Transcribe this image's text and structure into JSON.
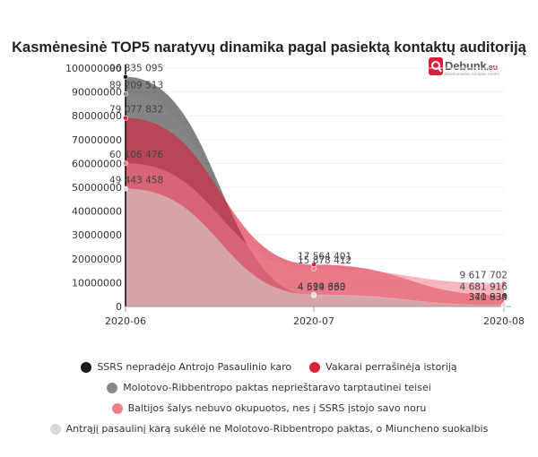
{
  "title": "Kasmėnesinė TOP5 naratyvų dinamika pagal pasiektą kontaktų auditoriją",
  "logo": {
    "word": "Debunk",
    "tld": ".eu",
    "tagline": "Disinformation Analysis Center"
  },
  "chart_data": {
    "type": "area",
    "categories": [
      "2020-06",
      "2020-07",
      "2020-08"
    ],
    "y_ticks": [
      "0",
      "10000000",
      "20000000",
      "30000000",
      "40000000",
      "50000000",
      "60000000",
      "70000000",
      "80000000",
      "90000000",
      "100000000"
    ],
    "ylim": [
      0,
      100000000
    ],
    "legend_position": "bottom",
    "series": [
      {
        "name": "SSRS nepradėjo Antrojo Pasaulinio karo",
        "color": "#1a1a1a",
        "values": [
          96335095,
          4514333,
          370830
        ],
        "labels": [
          "96 335 095",
          "4 514 333",
          "370 830"
        ]
      },
      {
        "name": "Vakarai perrašinėja istoriją",
        "color": "#d8203b",
        "values": [
          79077832,
          17564401,
          4681916
        ],
        "labels": [
          "79 077 832",
          "17 564 401",
          "4 681 916"
        ]
      },
      {
        "name": "Molotovo-Ribbentropo paktas neprieštaravo tarptautinei teisei",
        "color": "#888888",
        "values": [
          89209513,
          4699660,
          341934
        ],
        "labels": [
          "89 209 513",
          "4 699 660",
          "341 934"
        ]
      },
      {
        "name": "Baltijos šalys nebuvo okupuotos, nes į SSRS įstojo savo noru",
        "color": "#ee7d88",
        "values": [
          60106476,
          15878412,
          9617702
        ],
        "labels": [
          "60 106 476",
          "15 878 412",
          "9 617 702"
        ]
      },
      {
        "name": "Antrąjį pasaulinį karą sukėlė ne Molotovo-Ribbentropo paktas, o Miuncheno suokalbis",
        "color": "#d9d9d9",
        "values": [
          49443458,
          5000000,
          600000
        ],
        "labels": [
          "49 443 458",
          "",
          ""
        ]
      }
    ]
  }
}
